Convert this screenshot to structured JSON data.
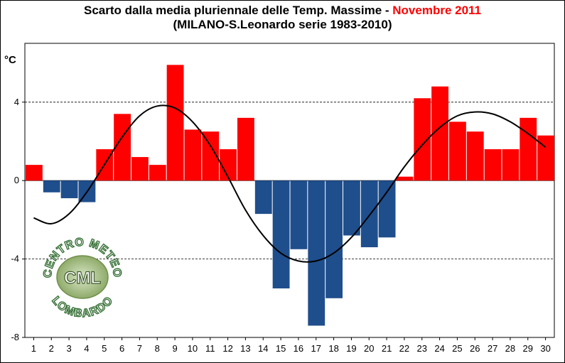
{
  "title_main": "Scarto dalla media pluriennale delle Temp. Massime - ",
  "title_highlight": "Novembre 2011",
  "subtitle": "(MILANO-S.Leonardo serie 1983-2010)",
  "colors": {
    "positive": "#ff0000",
    "negative": "#1f4e8c",
    "curve": "#000000",
    "title_highlight": "#ff0000"
  },
  "logo": {
    "text": "CML",
    "arc_text": "CENTRO METEO LOMBARDO"
  },
  "chart_data": {
    "type": "bar",
    "ylabel": "°C",
    "ylim": [
      -8,
      7
    ],
    "yticks": [
      -8,
      -4,
      0,
      4
    ],
    "grid": "horizontal dashed",
    "categories": [
      "1",
      "2",
      "3",
      "4",
      "5",
      "6",
      "7",
      "8",
      "9",
      "10",
      "11",
      "12",
      "13",
      "14",
      "15",
      "16",
      "17",
      "18",
      "19",
      "20",
      "21",
      "22",
      "23",
      "24",
      "25",
      "26",
      "27",
      "28",
      "29",
      "30"
    ],
    "values": [
      0.8,
      -0.6,
      -0.9,
      -1.1,
      1.6,
      3.4,
      1.2,
      0.8,
      5.9,
      2.6,
      2.5,
      1.6,
      3.2,
      -1.7,
      -5.5,
      -3.5,
      -7.4,
      -6.0,
      -2.8,
      -3.4,
      -2.9,
      0.2,
      4.2,
      4.8,
      3.0,
      2.5,
      1.6,
      1.6,
      3.2,
      2.3
    ],
    "trend_curve": {
      "x": [
        1,
        2,
        3,
        4,
        5,
        6,
        7,
        8,
        9,
        10,
        11,
        12,
        13,
        14,
        15,
        16,
        17,
        18,
        19,
        20,
        21,
        22,
        23,
        24,
        25,
        26,
        27,
        28,
        29,
        30
      ],
      "y": [
        -1.9,
        -2.2,
        -1.7,
        -0.6,
        0.8,
        2.2,
        3.3,
        3.8,
        3.7,
        3.0,
        1.8,
        0.2,
        -1.5,
        -2.8,
        -3.7,
        -4.1,
        -4.1,
        -3.7,
        -2.9,
        -1.8,
        -0.6,
        0.7,
        1.8,
        2.7,
        3.3,
        3.5,
        3.4,
        3.0,
        2.4,
        1.7
      ]
    }
  }
}
